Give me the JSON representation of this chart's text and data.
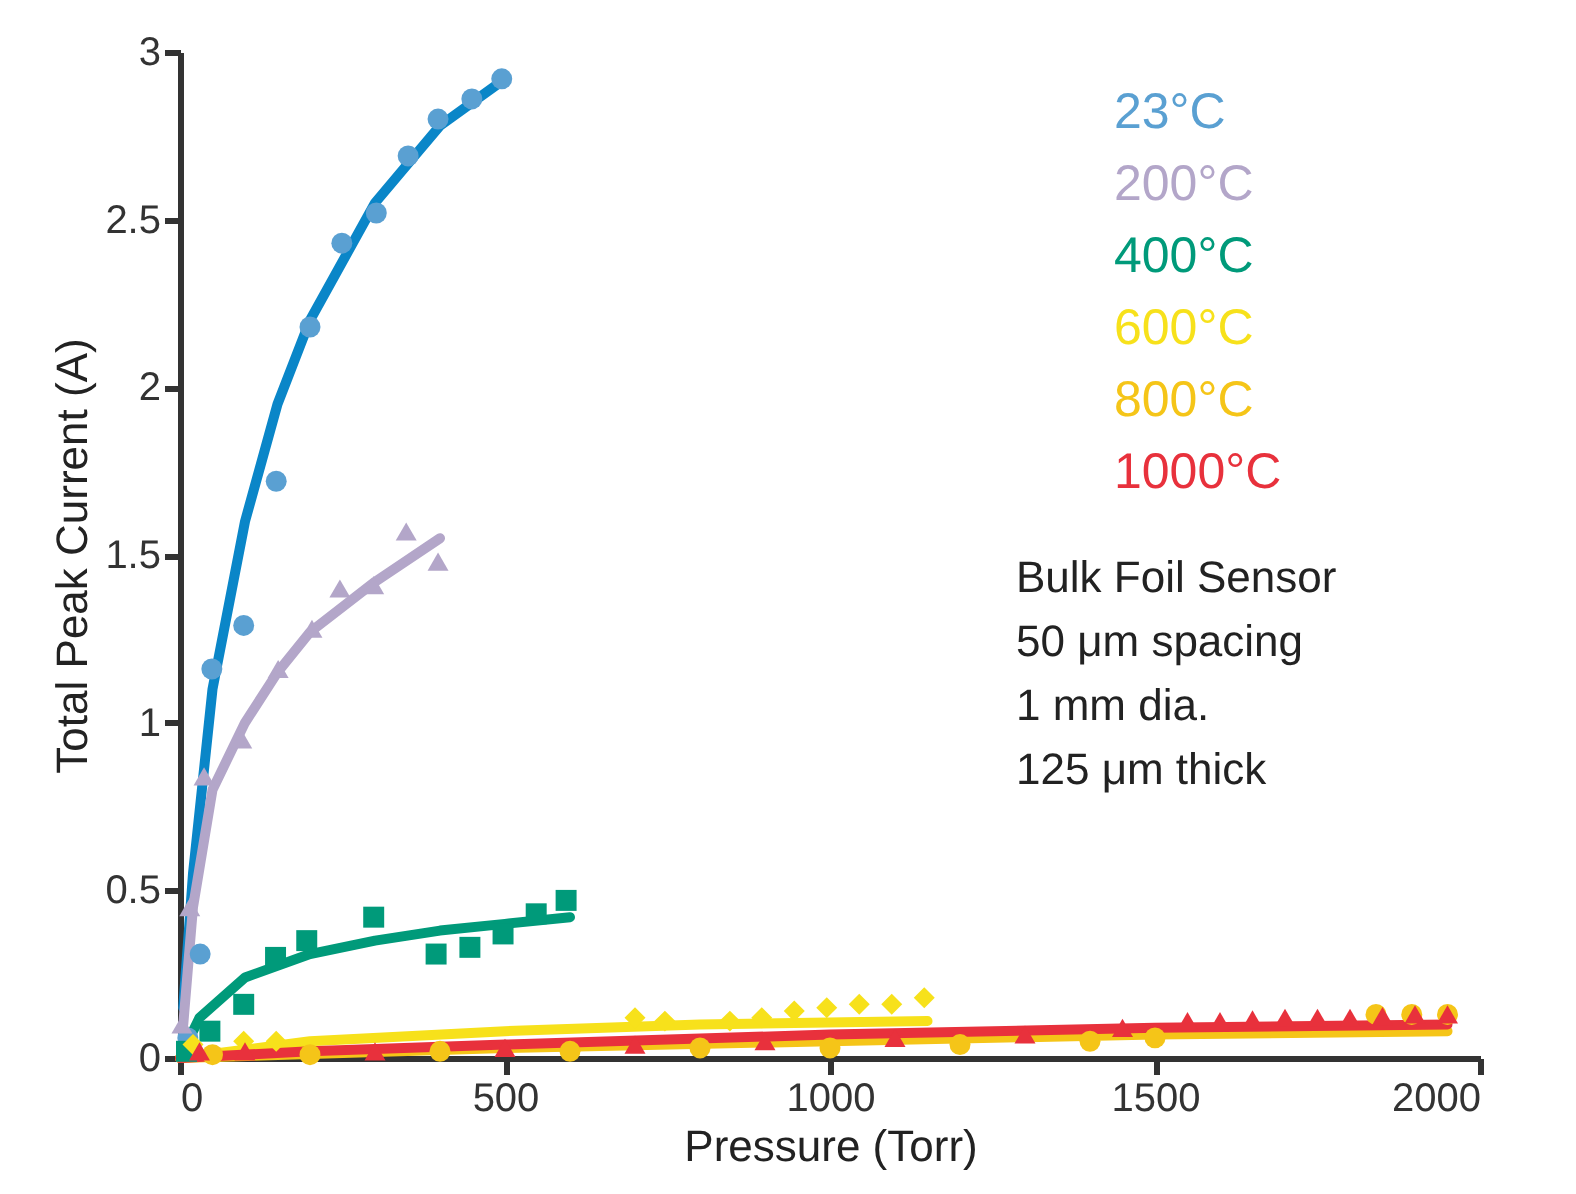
{
  "chart_data": {
    "type": "scatter",
    "xlabel": "Pressure (Torr)",
    "ylabel": "Total Peak Current (A)",
    "xlim": [
      0,
      2000
    ],
    "xticks": [
      0,
      500,
      1000,
      1500,
      2000
    ],
    "ylim": [
      0,
      3
    ],
    "yticks": [
      0,
      0.5,
      1,
      1.5,
      2,
      2.5,
      3
    ],
    "grid": false,
    "legend": "top right",
    "annotations": [
      "Bulk Foil Sensor",
      "50 μm spacing",
      "1 mm dia.",
      "125 μm thick"
    ],
    "series": [
      {
        "type": "line",
        "color": "#0a86c8",
        "x": [
          5,
          20,
          50,
          100,
          150,
          200,
          300,
          400,
          500
        ],
        "values": [
          0.15,
          0.55,
          1.1,
          1.6,
          1.95,
          2.2,
          2.55,
          2.78,
          2.92
        ]
      },
      {
        "type": "line",
        "color": "#b3a6c9",
        "x": [
          5,
          20,
          50,
          100,
          150,
          200,
          300,
          400
        ],
        "values": [
          0.1,
          0.45,
          0.8,
          1.0,
          1.15,
          1.27,
          1.42,
          1.55
        ]
      },
      {
        "type": "line",
        "color": "#009a7a",
        "x": [
          5,
          30,
          100,
          200,
          300,
          400,
          500,
          600
        ],
        "values": [
          0.02,
          0.12,
          0.24,
          0.31,
          0.35,
          0.38,
          0.4,
          0.42
        ]
      },
      {
        "type": "line",
        "color": "#f7e11b",
        "x": [
          0,
          200,
          500,
          800,
          1150
        ],
        "values": [
          0,
          0.05,
          0.08,
          0.1,
          0.11
        ]
      },
      {
        "type": "line",
        "color": "#f5c518",
        "x": [
          0,
          500,
          1000,
          1500,
          1950
        ],
        "values": [
          0,
          0.03,
          0.05,
          0.07,
          0.08
        ]
      },
      {
        "type": "line",
        "color": "#e8313c",
        "x": [
          0,
          200,
          500,
          1000,
          1500,
          1950
        ],
        "values": [
          0,
          0.02,
          0.04,
          0.07,
          0.09,
          0.1
        ]
      },
      {
        "name": "23°C",
        "marker": "circle",
        "color": "#5aa0d2",
        "x": [
          12,
          31,
          49,
          98,
          148,
          200,
          249,
          302,
          351,
          397,
          449,
          495
        ],
        "values": [
          0.06,
          0.31,
          1.16,
          1.29,
          1.72,
          2.18,
          2.43,
          2.52,
          2.69,
          2.8,
          2.86,
          2.92
        ]
      },
      {
        "name": "200°C",
        "marker": "triangle",
        "color": "#b3a6c9",
        "x": [
          3,
          15,
          37,
          95,
          151,
          203,
          246,
          298,
          348,
          397
        ],
        "values": [
          0.1,
          0.45,
          0.84,
          0.95,
          1.16,
          1.28,
          1.4,
          1.41,
          1.57,
          1.48
        ]
      },
      {
        "name": "400°C",
        "marker": "square",
        "color": "#009a7a",
        "x": [
          10,
          46,
          98,
          147,
          195,
          298,
          394,
          446,
          497,
          548,
          594
        ],
        "values": [
          0.02,
          0.08,
          0.16,
          0.3,
          0.35,
          0.42,
          0.31,
          0.33,
          0.37,
          0.43,
          0.47
        ]
      },
      {
        "name": "600°C",
        "marker": "diamond",
        "color": "#f7e11b",
        "x": [
          20,
          98,
          148,
          700,
          746,
          846,
          895,
          945,
          995,
          1045,
          1095,
          1145
        ],
        "values": [
          0.04,
          0.05,
          0.05,
          0.12,
          0.11,
          0.11,
          0.12,
          0.14,
          0.15,
          0.16,
          0.16,
          0.18
        ]
      },
      {
        "name": "800°C",
        "marker": "circle",
        "color": "#f5c518",
        "x": [
          50,
          200,
          400,
          600,
          800,
          1000,
          1200,
          1400,
          1500,
          1840,
          1895,
          1950
        ],
        "values": [
          0.01,
          0.01,
          0.02,
          0.02,
          0.03,
          0.03,
          0.04,
          0.05,
          0.06,
          0.13,
          0.13,
          0.13
        ]
      },
      {
        "name": "1000°C",
        "marker": "triangle",
        "color": "#e8313c",
        "x": [
          30,
          100,
          300,
          500,
          700,
          900,
          1100,
          1300,
          1450,
          1550,
          1600,
          1650,
          1700,
          1750,
          1800,
          1850,
          1900,
          1950
        ],
        "values": [
          0.02,
          0.02,
          0.02,
          0.03,
          0.04,
          0.05,
          0.06,
          0.07,
          0.09,
          0.11,
          0.11,
          0.115,
          0.12,
          0.12,
          0.12,
          0.125,
          0.13,
          0.13
        ]
      }
    ]
  }
}
